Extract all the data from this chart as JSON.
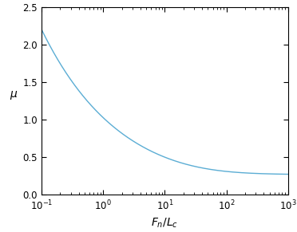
{
  "xlim": [
    0.1,
    1000
  ],
  "ylim": [
    0,
    2.5
  ],
  "yticks": [
    0,
    0.5,
    1.0,
    1.5,
    2.0,
    2.5
  ],
  "line_color": "#5BADD4",
  "line_width": 1.0,
  "xlabel": "$F_n/L_c$",
  "ylabel": "$\\mu$",
  "xlabel_fontsize": 10,
  "ylabel_fontsize": 10,
  "tick_fontsize": 8.5,
  "mu_inf": 0.27,
  "x_c": 54.0,
  "figwidth": 3.72,
  "figheight": 2.91,
  "dpi": 100
}
